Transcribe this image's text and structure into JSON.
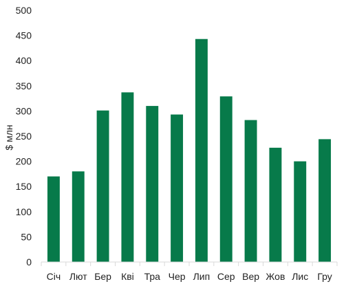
{
  "chart_data": {
    "type": "bar",
    "title": "",
    "xlabel": "",
    "ylabel": "$ млн",
    "categories": [
      "Січ",
      "Лют",
      "Бер",
      "Кві",
      "Тра",
      "Чер",
      "Лип",
      "Сер",
      "Вер",
      "Жов",
      "Лис",
      "Гру"
    ],
    "values": [
      170,
      180,
      301,
      337,
      310,
      293,
      443,
      329,
      282,
      227,
      200,
      244
    ],
    "ylim": [
      0,
      500
    ],
    "yticks": [
      "0",
      "50",
      "100",
      "150",
      "200",
      "250",
      "300",
      "350",
      "400",
      "450",
      "500"
    ],
    "grid": false,
    "legend": "none",
    "bar_color": "#077a4a",
    "axis_color": "#d9d9d9"
  }
}
